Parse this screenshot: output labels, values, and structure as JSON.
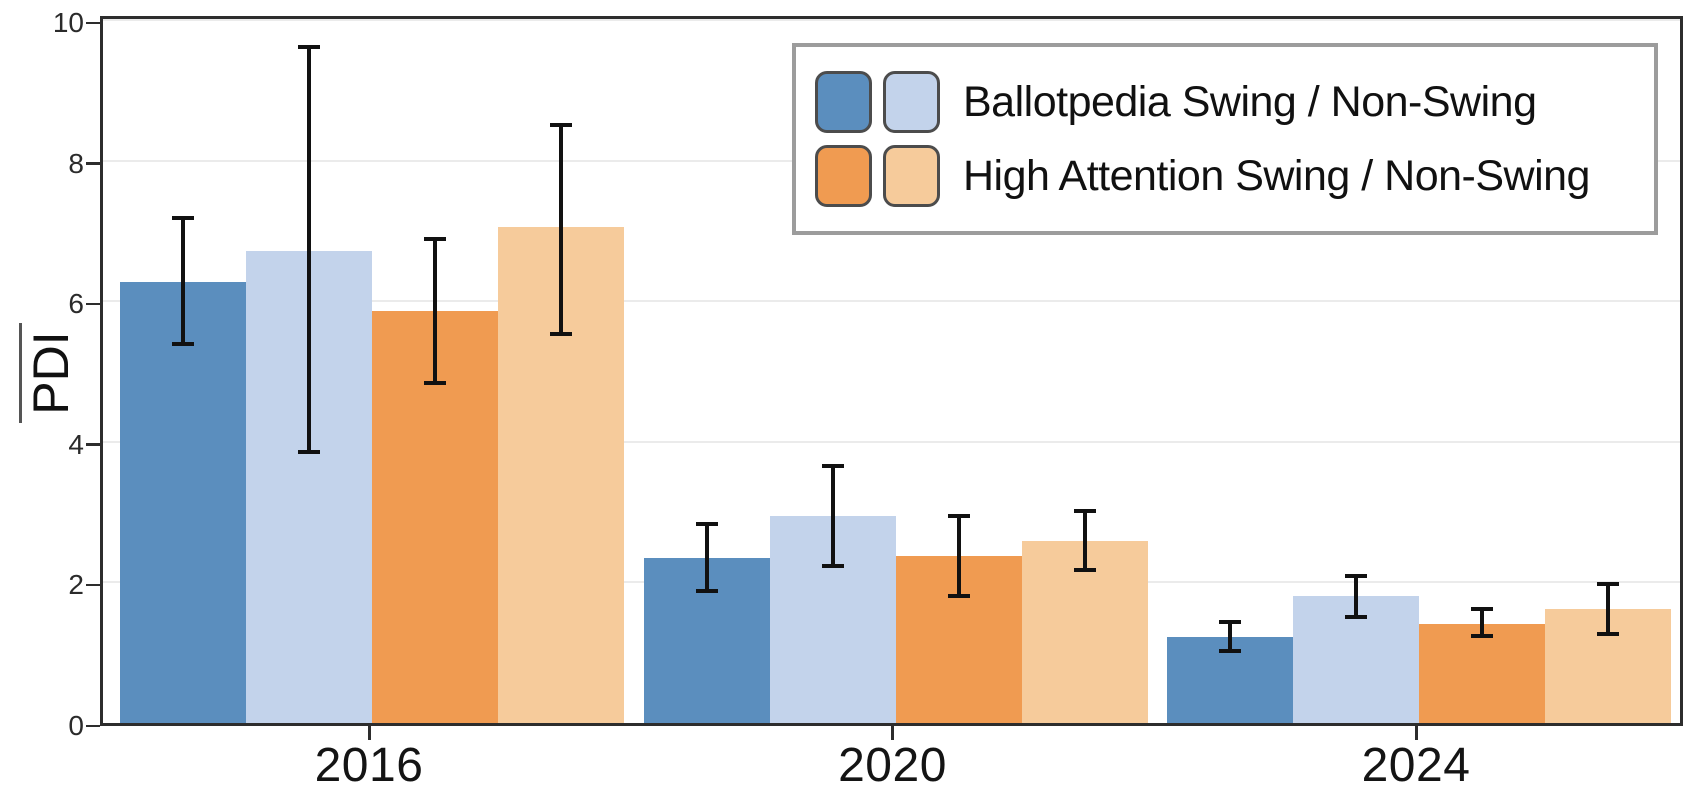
{
  "chart_data": {
    "type": "bar",
    "title": "",
    "ylabel": "PDI",
    "ylabel_overline": true,
    "xlabel": "",
    "categories": [
      "2016",
      "2020",
      "2024"
    ],
    "y_ticks": [
      0,
      2,
      4,
      6,
      8,
      10
    ],
    "ylim": [
      0,
      10.1
    ],
    "grid": "horizontal-only",
    "legend_position": "upper right",
    "series": [
      {
        "name": "Ballotpedia Swing",
        "color": "#5b8ebe",
        "values": [
          6.28,
          2.35,
          1.23
        ],
        "error_low": [
          5.39,
          1.88,
          1.03
        ],
        "error_high": [
          7.19,
          2.83,
          1.44
        ]
      },
      {
        "name": "Ballotpedia Non-Swing",
        "color": "#c3d3eb",
        "values": [
          6.71,
          2.94,
          1.81
        ],
        "error_low": [
          3.85,
          2.24,
          1.51
        ],
        "error_high": [
          9.62,
          3.66,
          2.09
        ]
      },
      {
        "name": "High Attention Swing",
        "color": "#f09b51",
        "values": [
          5.86,
          2.38,
          1.41
        ],
        "error_low": [
          4.83,
          1.81,
          1.24
        ],
        "error_high": [
          6.89,
          2.95,
          1.62
        ]
      },
      {
        "name": "High Attention Non-Swing",
        "color": "#f6cb9b",
        "values": [
          7.05,
          2.59,
          1.62
        ],
        "error_low": [
          5.54,
          2.17,
          1.26
        ],
        "error_high": [
          8.5,
          3.02,
          1.98
        ]
      }
    ],
    "legend": [
      {
        "label": "Ballotpedia Swing / Non-Swing",
        "swatches": [
          "#5b8ebe",
          "#c3d3eb"
        ]
      },
      {
        "label": "High Attention Swing / Non-Swing",
        "swatches": [
          "#f09b51",
          "#f6cb9b"
        ]
      }
    ],
    "style_colors": {
      "gridline": "#ebebeb",
      "spine": "#2d2d2d",
      "error_bar": "#111111",
      "legend_border": "#9c9c9c",
      "swatch_border": "#4c4c4c"
    }
  }
}
